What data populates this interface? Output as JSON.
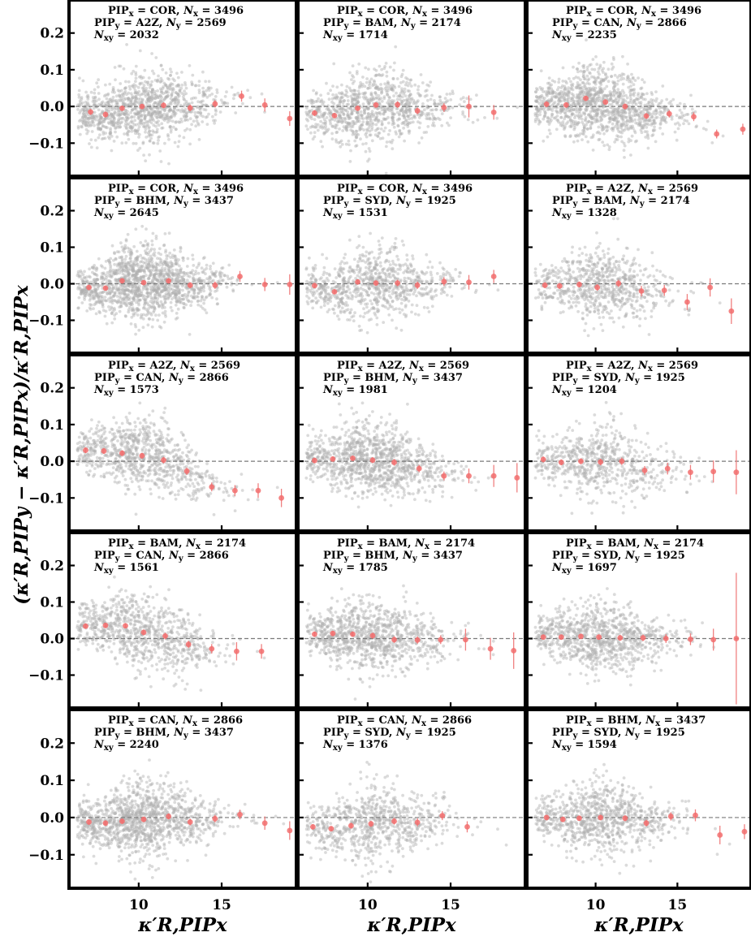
{
  "figure": {
    "ylabel": "(κ′R,PIPy − κ′R,PIPx)/κ′R,PIPx",
    "xlabel": "κ′R,PIPx",
    "xticks": [
      10,
      15
    ],
    "yticks": [
      -0.1,
      0.0,
      0.1,
      0.2
    ],
    "ytick_labels": [
      "−0.1",
      "0.0",
      "0.1",
      "0.2"
    ]
  },
  "chart_data": [
    {
      "type": "scatter",
      "pip_x": "COR",
      "n_x": 3496,
      "pip_y": "A2Z",
      "n_y": 2569,
      "n_xy": 2032,
      "xlim": [
        5.8,
        19.5
      ],
      "ylim": [
        -0.19,
        0.29
      ],
      "reference_line": 0.0,
      "binned_x": [
        7.1,
        8.0,
        9.0,
        10.2,
        11.5,
        13.1,
        14.6,
        16.2,
        17.6,
        19.1
      ],
      "binned_y": [
        -0.015,
        -0.022,
        -0.005,
        0.0,
        0.003,
        -0.004,
        0.007,
        0.028,
        0.004,
        -0.033
      ],
      "binned_err": [
        0.008,
        0.008,
        0.007,
        0.007,
        0.008,
        0.009,
        0.01,
        0.015,
        0.018,
        0.02
      ]
    },
    {
      "type": "scatter",
      "pip_x": "COR",
      "n_x": 3496,
      "pip_y": "BAM",
      "n_y": 2174,
      "n_xy": 1714,
      "xlim": [
        5.8,
        19.5
      ],
      "ylim": [
        -0.19,
        0.29
      ],
      "reference_line": 0.0,
      "binned_x": [
        6.8,
        8.0,
        9.4,
        10.5,
        11.8,
        13.0,
        14.6,
        16.1,
        17.6
      ],
      "binned_y": [
        -0.018,
        -0.025,
        -0.005,
        0.004,
        0.005,
        -0.012,
        -0.003,
        0.0,
        -0.016
      ],
      "binned_err": [
        0.008,
        0.007,
        0.007,
        0.007,
        0.009,
        0.009,
        0.012,
        0.03,
        0.02
      ]
    },
    {
      "type": "scatter",
      "pip_x": "COR",
      "n_x": 3496,
      "pip_y": "CAN",
      "n_y": 2866,
      "n_xy": 2235,
      "xlim": [
        5.8,
        19.5
      ],
      "ylim": [
        -0.19,
        0.29
      ],
      "reference_line": 0.0,
      "binned_x": [
        7.0,
        8.2,
        9.4,
        10.6,
        11.8,
        13.1,
        14.5,
        16.0,
        17.4,
        19.0
      ],
      "binned_y": [
        0.006,
        0.004,
        0.022,
        0.012,
        0.0,
        -0.026,
        -0.02,
        -0.028,
        -0.075,
        -0.062
      ],
      "binned_err": [
        0.008,
        0.007,
        0.007,
        0.007,
        0.008,
        0.008,
        0.01,
        0.012,
        0.012,
        0.015
      ]
    },
    {
      "type": "scatter",
      "pip_x": "COR",
      "n_x": 3496,
      "pip_y": "BHM",
      "n_y": 3437,
      "n_xy": 2645,
      "xlim": [
        5.8,
        19.5
      ],
      "ylim": [
        -0.19,
        0.29
      ],
      "reference_line": 0.0,
      "binned_x": [
        7.0,
        8.0,
        9.0,
        10.3,
        11.8,
        13.1,
        14.6,
        16.1,
        17.6,
        19.1
      ],
      "binned_y": [
        -0.01,
        -0.012,
        0.008,
        0.003,
        0.008,
        -0.004,
        -0.004,
        0.02,
        -0.002,
        -0.002
      ],
      "binned_err": [
        0.007,
        0.006,
        0.006,
        0.006,
        0.007,
        0.008,
        0.01,
        0.015,
        0.018,
        0.028
      ]
    },
    {
      "type": "scatter",
      "pip_x": "COR",
      "n_x": 3496,
      "pip_y": "SYD",
      "n_y": 1925,
      "n_xy": 1531,
      "xlim": [
        5.8,
        19.5
      ],
      "ylim": [
        -0.19,
        0.29
      ],
      "reference_line": 0.0,
      "binned_x": [
        6.8,
        8.0,
        9.4,
        10.5,
        11.8,
        13.0,
        14.6,
        16.1,
        17.6
      ],
      "binned_y": [
        -0.005,
        -0.022,
        0.005,
        0.002,
        0.002,
        -0.004,
        0.006,
        0.004,
        0.02
      ],
      "binned_err": [
        0.007,
        0.007,
        0.007,
        0.007,
        0.009,
        0.01,
        0.012,
        0.02,
        0.018
      ]
    },
    {
      "type": "scatter",
      "pip_x": "A2Z",
      "n_x": 2569,
      "pip_y": "BAM",
      "n_y": 2174,
      "n_xy": 1328,
      "xlim": [
        5.8,
        19.5
      ],
      "ylim": [
        -0.19,
        0.29
      ],
      "reference_line": 0.0,
      "binned_x": [
        6.9,
        7.8,
        9.0,
        10.1,
        11.4,
        12.8,
        14.2,
        15.6,
        17.0,
        18.3
      ],
      "binned_y": [
        -0.004,
        -0.006,
        -0.002,
        -0.01,
        0.001,
        -0.02,
        -0.018,
        -0.05,
        -0.01,
        -0.075
      ],
      "binned_err": [
        0.008,
        0.008,
        0.008,
        0.009,
        0.01,
        0.014,
        0.015,
        0.022,
        0.025,
        0.035
      ]
    },
    {
      "type": "scatter",
      "pip_x": "A2Z",
      "n_x": 2569,
      "pip_y": "CAN",
      "n_y": 2866,
      "n_xy": 1573,
      "xlim": [
        5.8,
        19.5
      ],
      "ylim": [
        -0.19,
        0.29
      ],
      "reference_line": 0.0,
      "binned_x": [
        6.8,
        7.9,
        9.0,
        10.2,
        11.5,
        12.9,
        14.4,
        15.8,
        17.2,
        18.6
      ],
      "binned_y": [
        0.03,
        0.028,
        0.022,
        0.015,
        0.003,
        -0.027,
        -0.07,
        -0.08,
        -0.08,
        -0.1
      ],
      "binned_err": [
        0.008,
        0.008,
        0.008,
        0.008,
        0.009,
        0.01,
        0.012,
        0.015,
        0.02,
        0.025
      ]
    },
    {
      "type": "scatter",
      "pip_x": "A2Z",
      "n_x": 2569,
      "pip_y": "BHM",
      "n_y": 3437,
      "n_xy": 1981,
      "xlim": [
        5.8,
        19.5
      ],
      "ylim": [
        -0.19,
        0.29
      ],
      "reference_line": 0.0,
      "binned_x": [
        6.8,
        7.9,
        9.1,
        10.3,
        11.6,
        13.1,
        14.6,
        16.1,
        17.6,
        19.0
      ],
      "binned_y": [
        0.002,
        0.006,
        0.008,
        0.003,
        -0.003,
        -0.02,
        -0.04,
        -0.04,
        -0.04,
        -0.045
      ],
      "binned_err": [
        0.007,
        0.007,
        0.007,
        0.008,
        0.009,
        0.01,
        0.012,
        0.02,
        0.03,
        0.04
      ]
    },
    {
      "type": "scatter",
      "pip_x": "A2Z",
      "n_x": 2569,
      "pip_y": "SYD",
      "n_y": 1925,
      "n_xy": 1204,
      "xlim": [
        5.8,
        19.5
      ],
      "ylim": [
        -0.19,
        0.29
      ],
      "reference_line": 0.0,
      "binned_x": [
        6.8,
        7.9,
        9.1,
        10.3,
        11.6,
        13.0,
        14.4,
        15.8,
        17.2,
        18.6
      ],
      "binned_y": [
        0.005,
        -0.003,
        0.0,
        -0.002,
        0.0,
        -0.025,
        -0.02,
        -0.03,
        -0.028,
        -0.03
      ],
      "binned_err": [
        0.008,
        0.008,
        0.008,
        0.009,
        0.01,
        0.012,
        0.016,
        0.02,
        0.03,
        0.06
      ]
    },
    {
      "type": "scatter",
      "pip_x": "BAM",
      "n_x": 2174,
      "pip_y": "CAN",
      "n_y": 2866,
      "n_xy": 1561,
      "xlim": [
        5.8,
        19.5
      ],
      "ylim": [
        -0.19,
        0.29
      ],
      "reference_line": 0.0,
      "binned_x": [
        6.8,
        8.0,
        9.2,
        10.3,
        11.6,
        13.0,
        14.4,
        15.9,
        17.4
      ],
      "binned_y": [
        0.034,
        0.036,
        0.035,
        0.017,
        0.007,
        -0.016,
        -0.028,
        -0.035,
        -0.035
      ],
      "binned_err": [
        0.007,
        0.007,
        0.007,
        0.008,
        0.009,
        0.01,
        0.013,
        0.025,
        0.02
      ]
    },
    {
      "type": "scatter",
      "pip_x": "BAM",
      "n_x": 2174,
      "pip_y": "BHM",
      "n_y": 3437,
      "n_xy": 1785,
      "xlim": [
        5.8,
        19.5
      ],
      "ylim": [
        -0.19,
        0.29
      ],
      "reference_line": 0.0,
      "binned_x": [
        6.8,
        7.9,
        9.1,
        10.3,
        11.6,
        13.0,
        14.4,
        15.9,
        17.4,
        18.8
      ],
      "binned_y": [
        0.012,
        0.014,
        0.012,
        0.008,
        -0.003,
        -0.004,
        -0.003,
        -0.003,
        -0.028,
        -0.033
      ],
      "binned_err": [
        0.007,
        0.007,
        0.007,
        0.008,
        0.009,
        0.01,
        0.012,
        0.03,
        0.03,
        0.05
      ]
    },
    {
      "type": "scatter",
      "pip_x": "BAM",
      "n_x": 2174,
      "pip_y": "SYD",
      "n_y": 1925,
      "n_xy": 1697,
      "xlim": [
        5.8,
        19.5
      ],
      "ylim": [
        -0.19,
        0.29
      ],
      "reference_line": 0.0,
      "binned_x": [
        6.8,
        7.9,
        9.1,
        10.2,
        11.5,
        12.9,
        14.3,
        15.8,
        17.2,
        18.6
      ],
      "binned_y": [
        0.004,
        0.004,
        0.006,
        0.004,
        0.002,
        0.002,
        0.0,
        -0.002,
        -0.003,
        0.0
      ],
      "binned_err": [
        0.006,
        0.006,
        0.006,
        0.007,
        0.008,
        0.009,
        0.012,
        0.016,
        0.03,
        0.18
      ]
    },
    {
      "type": "scatter",
      "pip_x": "CAN",
      "n_x": 2866,
      "pip_y": "BHM",
      "n_y": 3437,
      "n_xy": 2240,
      "xlim": [
        5.8,
        19.5
      ],
      "ylim": [
        -0.19,
        0.29
      ],
      "reference_line": 0.0,
      "binned_x": [
        7.0,
        8.0,
        9.0,
        10.3,
        11.8,
        13.1,
        14.6,
        16.1,
        17.6,
        19.1
      ],
      "binned_y": [
        -0.012,
        -0.015,
        -0.01,
        -0.005,
        0.003,
        -0.012,
        -0.003,
        0.008,
        -0.015,
        -0.035
      ],
      "binned_err": [
        0.007,
        0.007,
        0.007,
        0.007,
        0.008,
        0.009,
        0.01,
        0.013,
        0.018,
        0.025
      ]
    },
    {
      "type": "scatter",
      "pip_x": "CAN",
      "n_x": 2866,
      "pip_y": "SYD",
      "n_y": 1925,
      "n_xy": 1376,
      "xlim": [
        5.8,
        19.5
      ],
      "ylim": [
        -0.19,
        0.29
      ],
      "reference_line": 0.0,
      "binned_x": [
        6.7,
        7.8,
        9.0,
        10.2,
        11.6,
        13.0,
        14.5,
        16.0
      ],
      "binned_y": [
        -0.025,
        -0.03,
        -0.022,
        -0.017,
        -0.01,
        -0.013,
        0.005,
        -0.025
      ],
      "binned_err": [
        0.007,
        0.007,
        0.008,
        0.008,
        0.009,
        0.011,
        0.012,
        0.015
      ]
    },
    {
      "type": "scatter",
      "pip_x": "BHM",
      "n_x": 3437,
      "pip_y": "SYD",
      "n_y": 1925,
      "n_xy": 1594,
      "xlim": [
        5.8,
        19.5
      ],
      "ylim": [
        -0.19,
        0.29
      ],
      "reference_line": 0.0,
      "binned_x": [
        7.0,
        8.0,
        9.0,
        10.3,
        11.8,
        13.1,
        14.6,
        16.1,
        17.6,
        19.1
      ],
      "binned_y": [
        0.0,
        -0.005,
        -0.002,
        0.0,
        -0.002,
        -0.015,
        0.003,
        0.006,
        -0.047,
        -0.038
      ],
      "binned_err": [
        0.007,
        0.007,
        0.007,
        0.007,
        0.008,
        0.009,
        0.011,
        0.016,
        0.025,
        0.02
      ]
    }
  ]
}
